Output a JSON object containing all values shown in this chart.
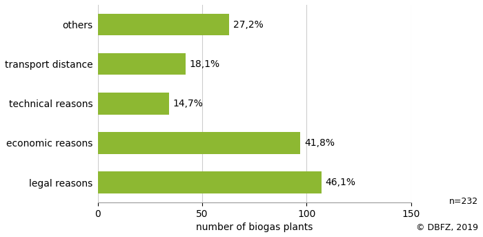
{
  "categories": [
    "legal reasons",
    "economic reasons",
    "technical reasons",
    "transport distance",
    "others"
  ],
  "values": [
    107,
    97,
    34,
    42,
    63
  ],
  "percentages": [
    "46,1%",
    "41,8%",
    "14,7%",
    "18,1%",
    "27,2%"
  ],
  "bar_color": "#8db832",
  "xlim": [
    0,
    150
  ],
  "xticks": [
    0,
    50,
    100,
    150
  ],
  "xlabel": "number of biogas plants",
  "note_n": "n=232",
  "note_copy": "© DBFZ, 2019",
  "background_color": "#ffffff",
  "bar_height": 0.55,
  "label_fontsize": 10,
  "tick_fontsize": 10,
  "xlabel_fontsize": 10,
  "note_fontsize": 9,
  "grid_color": "#cccccc",
  "figsize": [
    7.0,
    3.43
  ],
  "dpi": 100
}
